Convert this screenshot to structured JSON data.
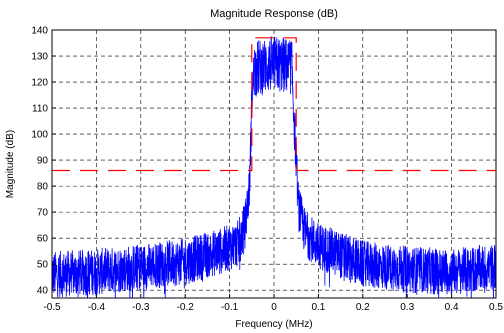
{
  "chart_data": {
    "type": "line",
    "title": "Magnitude Response (dB)",
    "xlabel": "Frequency (MHz)",
    "ylabel": "Magnitude (dB)",
    "xlim": [
      -0.5,
      0.5
    ],
    "ylim": [
      37,
      140
    ],
    "xticks": [
      -0.5,
      -0.4,
      -0.3,
      -0.2,
      -0.1,
      0,
      0.1,
      0.2,
      0.3,
      0.4,
      0.5
    ],
    "xticklabels": [
      "-0.5",
      "-0.4",
      "-0.3",
      "-0.2",
      "-0.1",
      "0",
      "0.1",
      "0.2",
      "0.3",
      "0.4",
      "0.5"
    ],
    "yticks": [
      40,
      50,
      60,
      70,
      80,
      90,
      100,
      110,
      120,
      130,
      140
    ],
    "yticklabels": [
      "40",
      "50",
      "60",
      "70",
      "80",
      "90",
      "100",
      "110",
      "120",
      "130",
      "140"
    ],
    "grid": true,
    "series": [
      {
        "color": "#0000ff",
        "style": "noisy spectrum",
        "envelope": [
          [
            -0.5,
            46
          ],
          [
            -0.4,
            47
          ],
          [
            -0.3,
            49
          ],
          [
            -0.2,
            51
          ],
          [
            -0.12,
            55
          ],
          [
            -0.08,
            58
          ],
          [
            -0.065,
            65
          ],
          [
            -0.055,
            80
          ],
          [
            -0.05,
            113
          ],
          [
            -0.045,
            125
          ],
          [
            0,
            127
          ],
          [
            0.04,
            126
          ],
          [
            0.047,
            100
          ],
          [
            0.055,
            72
          ],
          [
            0.07,
            62
          ],
          [
            0.1,
            57
          ],
          [
            0.2,
            50
          ],
          [
            0.3,
            48
          ],
          [
            0.4,
            47
          ],
          [
            0.5,
            49
          ]
        ]
      },
      {
        "color": "#ff0000",
        "style": "dashed mask",
        "points": [
          [
            -0.5,
            86
          ],
          [
            -0.05,
            86
          ],
          [
            -0.05,
            137
          ],
          [
            0.05,
            137
          ],
          [
            0.05,
            86
          ],
          [
            0.5,
            86
          ]
        ]
      }
    ]
  }
}
